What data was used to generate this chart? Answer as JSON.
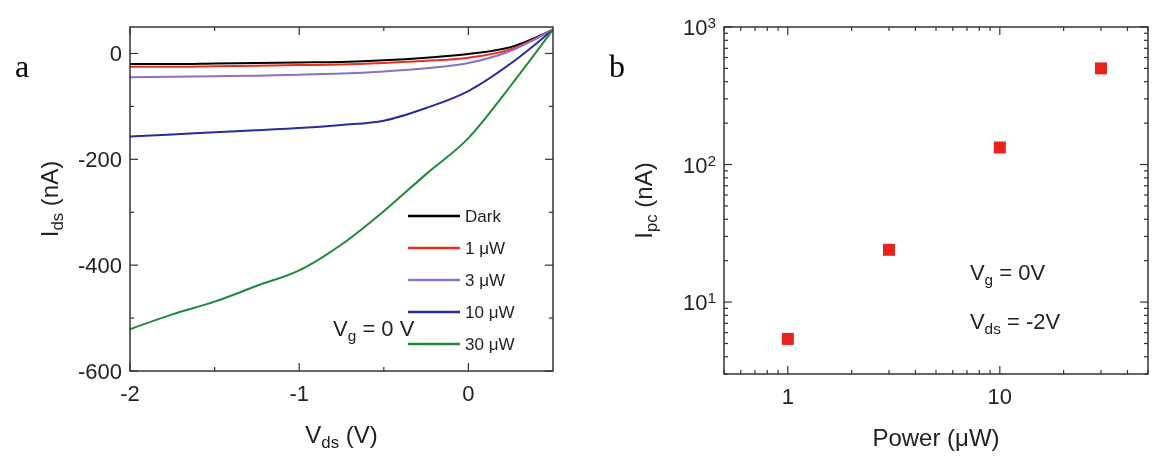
{
  "chart_data": [
    {
      "type": "line",
      "title": "a",
      "xlabel": "V$_{ds}$ (V)",
      "ylabel": "I$_{ds}$ (nA)",
      "legend": "bottom right",
      "x": [
        -2,
        -1.75,
        -1.5,
        -1.25,
        -1,
        -0.75,
        -0.5,
        -0.25,
        0,
        0.25,
        0.5
      ],
      "series": [
        {
          "name": "Dark",
          "color": "#000000",
          "values": [
            -20,
            -20,
            -19,
            -18,
            -17,
            -16,
            -13,
            -8,
            -1,
            12,
            45
          ]
        },
        {
          "name": "1 μW",
          "color": "#e8301e",
          "values": [
            -25,
            -25,
            -24,
            -23,
            -22,
            -21,
            -18,
            -14,
            -8,
            8,
            45
          ]
        },
        {
          "name": "3 μW",
          "color": "#8a6fd0",
          "values": [
            -45,
            -44,
            -43,
            -42,
            -40,
            -38,
            -34,
            -28,
            -18,
            5,
            45
          ]
        },
        {
          "name": "10 μW",
          "color": "#2b2ba0",
          "values": [
            -157,
            -153,
            -149,
            -145,
            -141,
            -135,
            -127,
            -103,
            -71,
            -19,
            45
          ]
        },
        {
          "name": "30 μW",
          "color": "#1f8a3a",
          "values": [
            -521,
            -493,
            -469,
            -439,
            -410,
            -361,
            -298,
            -228,
            -160,
            -61,
            45
          ]
        }
      ],
      "xlim": [
        -2,
        0.5
      ],
      "ylim": [
        -600,
        50
      ],
      "xticks": [
        -2,
        {
          "value": -1.5,
          "label": null
        },
        -1,
        {
          "value": -0.5,
          "label": null
        },
        0
      ],
      "yticks": [
        -600,
        {
          "value": -500,
          "label": null
        },
        -400,
        {
          "value": -300,
          "label": null
        },
        -200,
        {
          "value": -100,
          "label": null
        },
        0
      ],
      "annotations": [
        "V$_{g}$ = 0 V"
      ]
    },
    {
      "type": "scatter",
      "title": "b",
      "xlabel": "Power (μW)",
      "ylabel": "I$_{pc}$ (nA)",
      "log": "xy",
      "marker": "square",
      "legend": false,
      "x": [
        1,
        3,
        10,
        30
      ],
      "series": [
        {
          "color": "#e8231e",
          "values": [
            5.4,
            24,
            133,
            500
          ]
        }
      ],
      "xlim": [
        0.5,
        50
      ],
      "ylim": [
        3,
        1000
      ],
      "xticks": [
        {
          "value": 0.5,
          "label": null
        },
        {
          "value": 0.6,
          "label": null
        },
        {
          "value": 0.7,
          "label": null
        },
        {
          "value": 0.8,
          "label": null
        },
        {
          "value": 0.9,
          "label": null
        },
        1,
        {
          "value": 2,
          "label": null
        },
        {
          "value": 3,
          "label": null
        },
        {
          "value": 4,
          "label": null
        },
        {
          "value": 5,
          "label": null
        },
        {
          "value": 6,
          "label": null
        },
        {
          "value": 7,
          "label": null
        },
        {
          "value": 8,
          "label": null
        },
        {
          "value": 9,
          "label": null
        },
        10,
        {
          "value": 20,
          "label": null
        },
        {
          "value": 30,
          "label": null
        },
        {
          "value": 40,
          "label": null
        },
        {
          "value": 50,
          "label": null
        }
      ],
      "yticks": [
        {
          "value": 3,
          "label": null
        },
        {
          "value": 4,
          "label": null
        },
        {
          "value": 5,
          "label": null
        },
        {
          "value": 6,
          "label": null
        },
        {
          "value": 7,
          "label": null
        },
        {
          "value": 8,
          "label": null
        },
        {
          "value": 9,
          "label": null
        },
        {
          "value": 10,
          "label": "10$^{1}$"
        },
        {
          "value": 20,
          "label": null
        },
        {
          "value": 30,
          "label": null
        },
        {
          "value": 40,
          "label": null
        },
        {
          "value": 50,
          "label": null
        },
        {
          "value": 60,
          "label": null
        },
        {
          "value": 70,
          "label": null
        },
        {
          "value": 80,
          "label": null
        },
        {
          "value": 90,
          "label": null
        },
        {
          "value": 100,
          "label": "10$^{2}$"
        },
        {
          "value": 200,
          "label": null
        },
        {
          "value": 300,
          "label": null
        },
        {
          "value": 400,
          "label": null
        },
        {
          "value": 500,
          "label": null
        },
        {
          "value": 600,
          "label": null
        },
        {
          "value": 700,
          "label": null
        },
        {
          "value": 800,
          "label": null
        },
        {
          "value": 900,
          "label": null
        },
        {
          "value": 1000,
          "label": "10$^{3}$"
        }
      ],
      "annotations": [
        "V$_{g}$ = 0V",
        "V$_{ds}$ = -2V"
      ]
    }
  ]
}
